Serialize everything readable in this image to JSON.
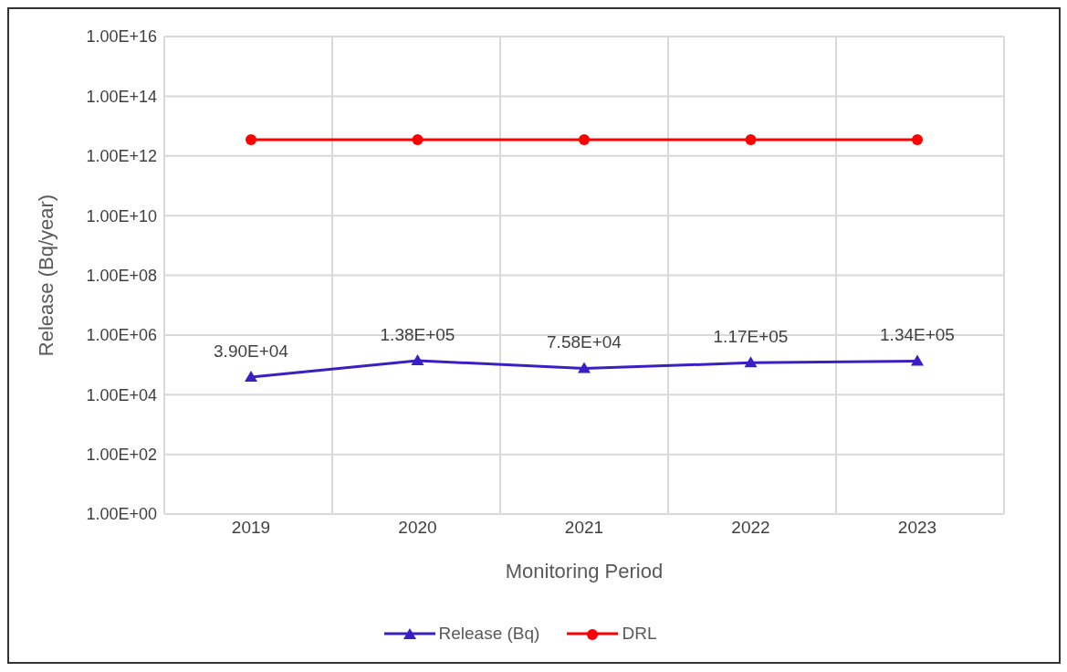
{
  "chart_data": {
    "type": "line",
    "xlabel": "Monitoring Period",
    "ylabel": "Release (Bq/year)",
    "categories": [
      "2019",
      "2020",
      "2021",
      "2022",
      "2023"
    ],
    "series": [
      {
        "name": "Release (Bq)",
        "color": "#3a20c4",
        "marker": "triangle",
        "values": [
          39000,
          138000,
          75800,
          117000,
          134000
        ],
        "value_labels": [
          "3.90E+04",
          "1.38E+05",
          "7.58E+04",
          "1.17E+05",
          "1.34E+05"
        ]
      },
      {
        "name": "DRL",
        "color": "#ff0000",
        "marker": "circle",
        "values": [
          3500000000000.0,
          3500000000000.0,
          3500000000000.0,
          3500000000000.0,
          3500000000000.0
        ]
      }
    ],
    "log": true,
    "ylim": [
      1,
      1e+16
    ],
    "yticks": [
      {
        "value": 1,
        "label": "1.00E+00"
      },
      {
        "value": 100,
        "label": "1.00E+02"
      },
      {
        "value": 10000,
        "label": "1.00E+04"
      },
      {
        "value": 1000000,
        "label": "1.00E+06"
      },
      {
        "value": 100000000,
        "label": "1.00E+08"
      },
      {
        "value": 10000000000,
        "label": "1.00E+10"
      },
      {
        "value": 1000000000000,
        "label": "1.00E+12"
      },
      {
        "value": 100000000000000,
        "label": "1.00E+14"
      },
      {
        "value": 10000000000000000,
        "label": "1.00E+16"
      }
    ],
    "grid": true,
    "legend": "bottom",
    "line_style": "solid"
  }
}
